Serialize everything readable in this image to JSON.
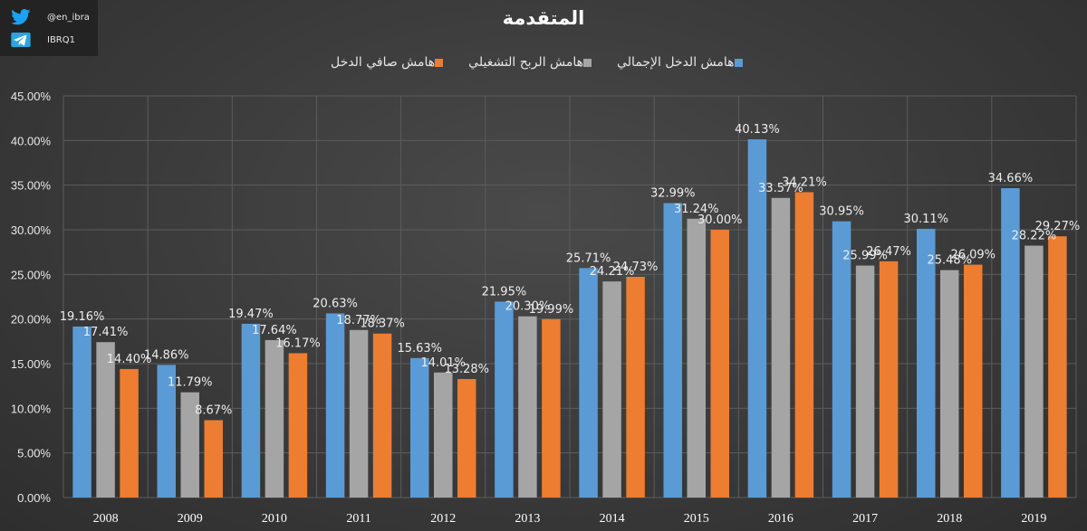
{
  "social": {
    "twitter_handle": "@en_ibra",
    "telegram_handle": "IBRQ1",
    "twitter_icon": "twitter-bird-icon",
    "telegram_icon": "telegram-plane-icon"
  },
  "chart_data": {
    "type": "bar",
    "title": "المتقدمة",
    "categories": [
      "2008",
      "2009",
      "2010",
      "2011",
      "2012",
      "2013",
      "2014",
      "2015",
      "2016",
      "2017",
      "2018",
      "2019"
    ],
    "ylim": [
      0,
      45
    ],
    "ytick_step": 5,
    "ytick_labels": [
      "0.00%",
      "5.00%",
      "10.00%",
      "15.00%",
      "20.00%",
      "25.00%",
      "30.00%",
      "35.00%",
      "40.00%",
      "45.00%"
    ],
    "grid": true,
    "legend_position": "top",
    "series": [
      {
        "name": "هامش الدخل الإجمالي",
        "color": "#5b9bd5",
        "values": [
          19.16,
          14.86,
          19.47,
          20.63,
          15.63,
          21.95,
          25.71,
          32.99,
          40.13,
          30.95,
          30.11,
          34.66
        ],
        "labels": [
          "19.16%",
          "14.86%",
          "19.47%",
          "20.63%",
          "15.63%",
          "21.95%",
          "25.71%",
          "32.99%",
          "40.13%",
          "30.95%",
          "30.11%",
          "34.66%"
        ]
      },
      {
        "name": "هامش الربح التشغيلي",
        "color": "#a5a5a5",
        "values": [
          17.41,
          11.79,
          17.64,
          18.77,
          14.01,
          20.3,
          24.21,
          31.24,
          33.57,
          25.99,
          25.48,
          28.22
        ],
        "labels": [
          "17.41%",
          "11.79%",
          "17.64%",
          "18.77%",
          "14.01%",
          "20.30%",
          "24.21%",
          "31.24%",
          "33.57%",
          "25.99%",
          "25.48%",
          "28.22%"
        ]
      },
      {
        "name": "هامش صافي الدخل",
        "color": "#ed7d31",
        "values": [
          14.4,
          8.67,
          16.17,
          18.37,
          13.28,
          19.99,
          24.73,
          30.0,
          34.21,
          26.47,
          26.09,
          29.27
        ],
        "labels": [
          "14.40%",
          "8.67%",
          "16.17%",
          "18.37%",
          "13.28%",
          "19.99%",
          "24.73%",
          "30.00%",
          "34.21%",
          "26.47%",
          "26.09%",
          "29.27%"
        ]
      }
    ]
  }
}
